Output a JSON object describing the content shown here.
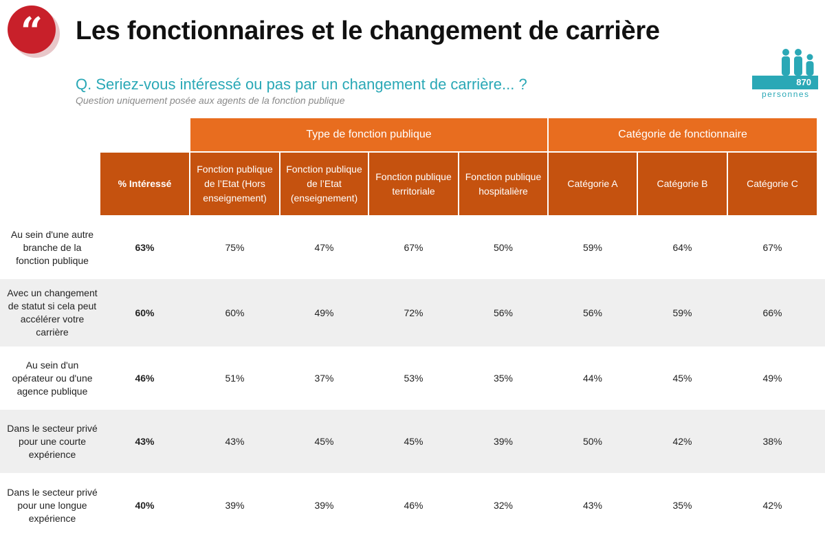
{
  "header": {
    "quote_glyph": "“",
    "title": "Les fonctionnaires et le changement de carrière",
    "question": "Q. Seriez-vous intéressé ou pas par un changement de carrière... ?",
    "subquestion": "Question uniquement posée aux agents de la fonction publique"
  },
  "sample": {
    "count": "870",
    "label": "personnes",
    "icon": "people-icon",
    "color": "#2aa8b6"
  },
  "colors": {
    "accent_red": "#c8202a",
    "group_header": "#e86d1f",
    "column_header": "#c5520f",
    "teal": "#2aa8b6"
  },
  "table": {
    "groups": [
      "Type de fonction publique",
      "Catégorie de fonctionnaire"
    ],
    "columns": [
      "% Intéressé",
      "Fonction publique de l’Etat (Hors enseignement)",
      "Fonction publique de l’Etat (enseignement)",
      "Fonction publique territoriale",
      "Fonction publique hospitalière",
      "Catégorie A",
      "Catégorie B",
      "Catégorie C"
    ],
    "rows": [
      {
        "label": "Au sein d'une autre branche de la fonction publique",
        "values": [
          "63%",
          "75%",
          "47%",
          "67%",
          "50%",
          "59%",
          "64%",
          "67%"
        ]
      },
      {
        "label": "Avec un changement de statut si cela peut accélérer votre carrière",
        "values": [
          "60%",
          "60%",
          "49%",
          "72%",
          "56%",
          "56%",
          "59%",
          "66%"
        ]
      },
      {
        "label": "Au sein d'un opérateur ou d'une agence publique",
        "values": [
          "46%",
          "51%",
          "37%",
          "53%",
          "35%",
          "44%",
          "45%",
          "49%"
        ]
      },
      {
        "label": "Dans le secteur privé pour une courte expérience",
        "values": [
          "43%",
          "43%",
          "45%",
          "45%",
          "39%",
          "50%",
          "42%",
          "38%"
        ]
      },
      {
        "label": "Dans le secteur privé pour une longue expérience",
        "values": [
          "40%",
          "39%",
          "39%",
          "46%",
          "32%",
          "43%",
          "35%",
          "42%"
        ]
      }
    ]
  }
}
